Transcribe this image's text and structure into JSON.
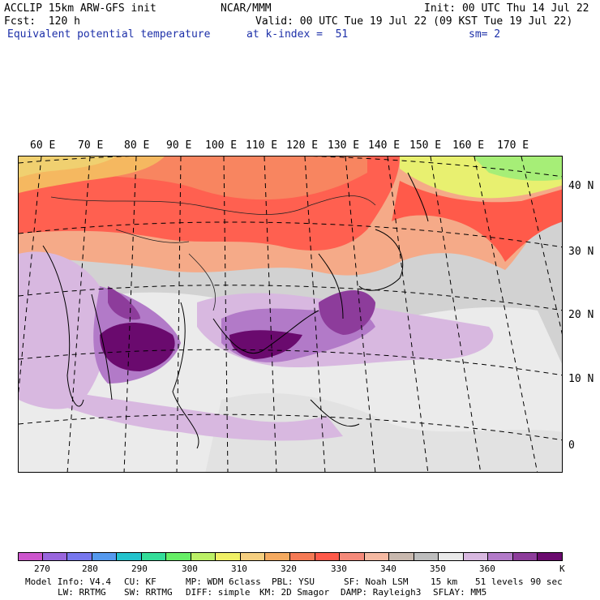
{
  "header": {
    "left1": "ACCLIP 15km ARW-GFS init",
    "left2": "Fcst:  120 h",
    "left3": "Equivalent potential temperature",
    "center1": "NCAR/MMM",
    "center3": "at k-index =  51",
    "right1": "Init: 00 UTC Thu 14 Jul 22",
    "right2": "Valid: 00 UTC Tue 19 Jul 22 (09 KST Tue 19 Jul 22)",
    "right3": "sm= 2"
  },
  "map": {
    "lon_labels": [
      "60 E",
      "70 E",
      "80 E",
      "90 E",
      "100 E",
      "110 E",
      "120 E",
      "130 E",
      "140 E",
      "150 E",
      "160 E",
      "170 E"
    ],
    "lat_labels": [
      "40 N",
      "30 N",
      "20 N",
      "10 N",
      "0"
    ],
    "field": "Equivalent potential temperature",
    "regions": [
      {
        "name": "north-warm-band",
        "level": 330
      },
      {
        "name": "pacific-green-zone",
        "level": 305
      },
      {
        "name": "india-low",
        "level": 365
      },
      {
        "name": "bay-of-bengal-low",
        "level": 370
      },
      {
        "name": "south-china-sea-low",
        "level": 368
      },
      {
        "name": "philippine-sea-low",
        "level": 362
      },
      {
        "name": "tropical-background",
        "level": 352
      }
    ]
  },
  "colorbar": {
    "colors": [
      "#cc55cc",
      "#9966dd",
      "#7777ee",
      "#5599ee",
      "#22c2cc",
      "#33dd99",
      "#66ee66",
      "#bbf066",
      "#f0f066",
      "#f5cf80",
      "#f5aa60",
      "#f57a55",
      "#ff5a4a",
      "#f58a7a",
      "#f5b9a2",
      "#c8b8ae",
      "#bdbdbd",
      "#e9e9e9",
      "#d8b8e0",
      "#b27ac8",
      "#8d3c9b",
      "#6a0a6e"
    ],
    "tick_labels": [
      "270",
      "280",
      "290",
      "300",
      "310",
      "320",
      "330",
      "340",
      "350",
      "360"
    ],
    "unit": "K"
  },
  "footer": {
    "line1": [
      "Model Info: V4.4",
      "CU: KF",
      "MP: WDM 6class",
      "PBL: YSU",
      "SF: Noah LSM",
      "15 km",
      "51 levels",
      "90 sec"
    ],
    "line2": [
      "LW: RRTMG",
      "SW: RRTMG",
      "DIFF: simple",
      "KM: 2D Smagor",
      "DAMP: Rayleigh3",
      "SFLAY: MM5"
    ]
  }
}
